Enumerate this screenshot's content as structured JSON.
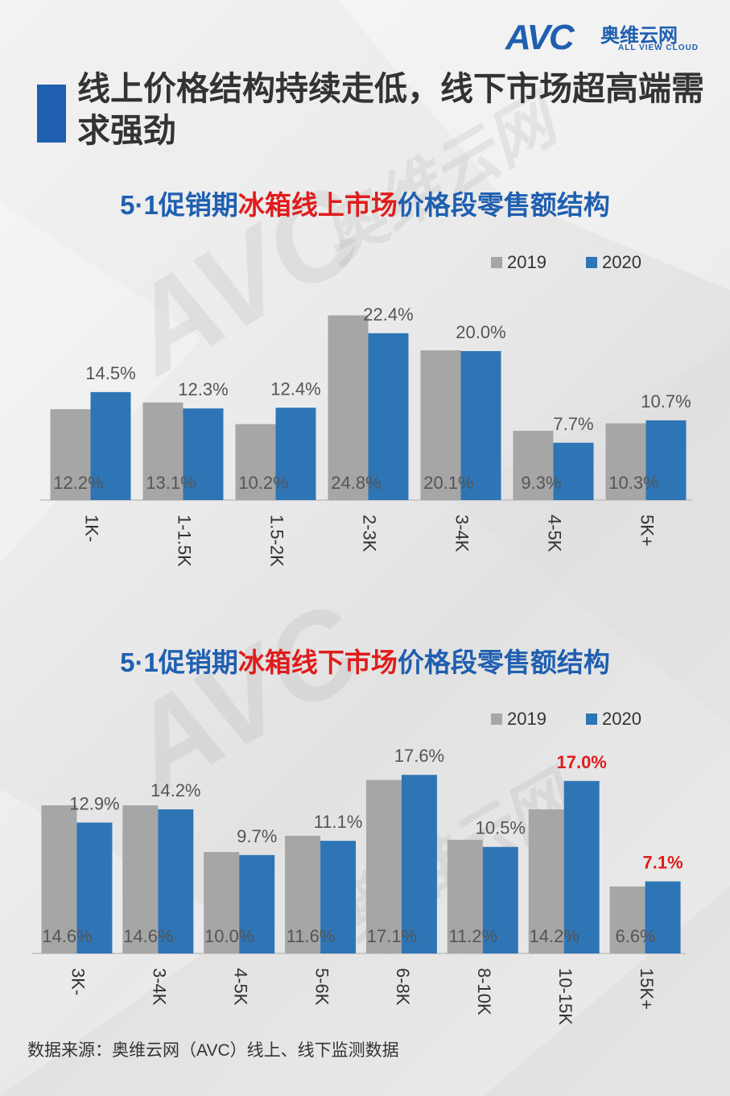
{
  "logo": {
    "mark": "AVC",
    "cn": "奥维云网",
    "en": "ALL VIEW CLOUD"
  },
  "main_title": "线上价格结构持续走低，线下市场超高端需求强劲",
  "charts_titles": [
    {
      "p1": "5·1促销期",
      "p2": "冰箱线上市场",
      "p3": "价格段零售额结构"
    },
    {
      "p1": "5·1促销期",
      "p2": "冰箱线下市场",
      "p3": "价格段零售额结构"
    }
  ],
  "source": "数据来源：奥维云网（AVC）线上、线下监测数据",
  "watermark": {
    "mark": "AVC",
    "cn": "奥维云网",
    "en": "ALL VIEW CLOUD"
  },
  "colors": {
    "s2019": "#a6a6a6",
    "s2020": "#2e75b6",
    "highlight": "#e01c1c",
    "title_blue": "#1f5fb0"
  },
  "chart_data": [
    {
      "type": "bar",
      "title": "5·1促销期冰箱线上市场价格段零售额结构",
      "categories": [
        "1K-",
        "1-1.5K",
        "1.5-2K",
        "2-3K",
        "3-4K",
        "4-5K",
        "5K+"
      ],
      "series": [
        {
          "name": "2019",
          "values": [
            12.2,
            13.1,
            10.2,
            24.8,
            20.1,
            9.3,
            10.3
          ],
          "labels": [
            "12.2%",
            "13.1%",
            "10.2%",
            "24.8%",
            "20.1%",
            "9.3%",
            "10.3%"
          ]
        },
        {
          "name": "2020",
          "values": [
            14.5,
            12.3,
            12.4,
            22.4,
            20.0,
            7.7,
            10.7
          ],
          "labels": [
            "14.5%",
            "12.3%",
            "12.4%",
            "22.4%",
            "20.0%",
            "7.7%",
            "10.7%"
          ]
        }
      ],
      "legend_position": "top-right",
      "ylim": [
        0,
        25
      ]
    },
    {
      "type": "bar",
      "title": "5·1促销期冰箱线下市场价格段零售额结构",
      "categories": [
        "3K-",
        "3-4K",
        "4-5K",
        "5-6K",
        "6-8K",
        "8-10K",
        "10-15K",
        "15K+"
      ],
      "series": [
        {
          "name": "2019",
          "values": [
            14.6,
            14.6,
            10.0,
            11.6,
            17.1,
            11.2,
            14.2,
            6.6
          ],
          "labels": [
            "14.6%",
            "14.6%",
            "10.0%",
            "11.6%",
            "17.1%",
            "11.2%",
            "14.2%",
            "6.6%"
          ]
        },
        {
          "name": "2020",
          "values": [
            12.9,
            14.2,
            9.7,
            11.1,
            17.6,
            10.5,
            17.0,
            7.1
          ],
          "labels": [
            "12.9%",
            "14.2%",
            "9.7%",
            "11.1%",
            "17.6%",
            "10.5%",
            "17.0%",
            "7.1%"
          ],
          "highlighted_labels": [
            "17.0%",
            "7.1%"
          ]
        }
      ],
      "legend_position": "top-right",
      "ylim": [
        0,
        18
      ]
    }
  ]
}
